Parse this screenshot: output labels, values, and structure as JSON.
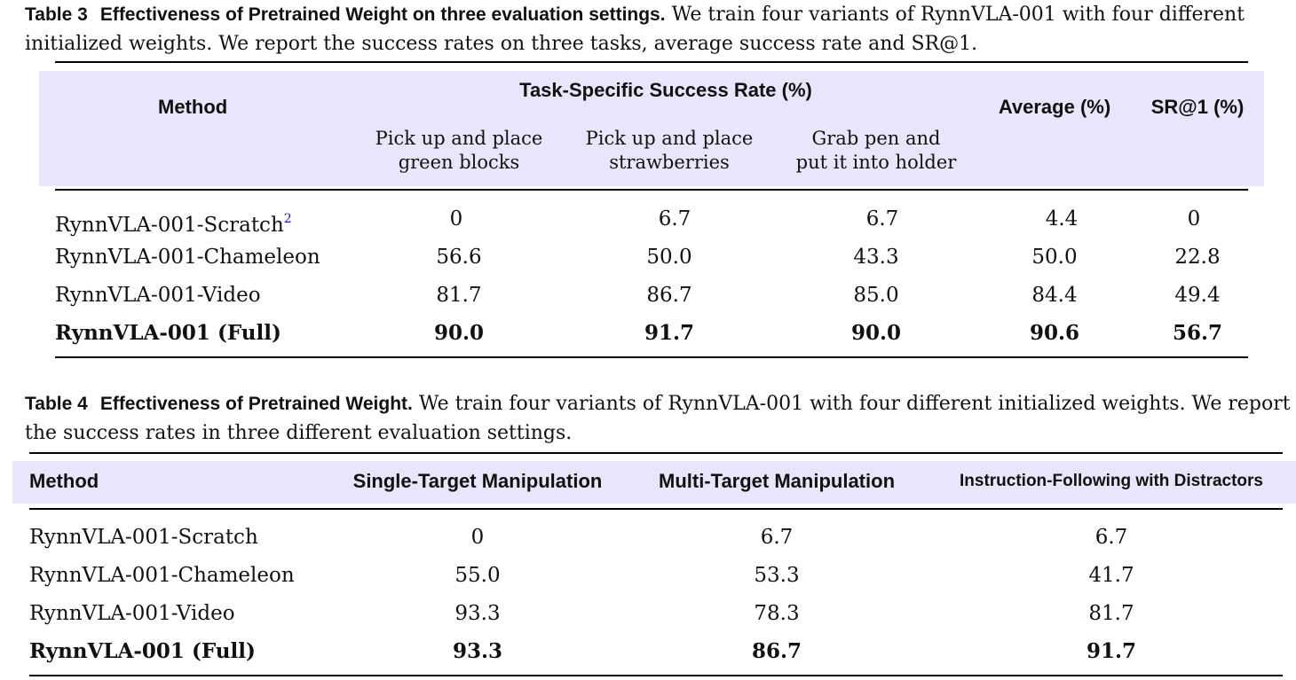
{
  "table3": {
    "caption_label": "Table 3",
    "caption_title": "Effectiveness of Pretrained Weight on three evaluation settings.",
    "caption_text": "We train four variants of RynnVLA-001 with four different initialized weights. We report the success rates on three tasks, average success rate and SR@1.",
    "headers": {
      "method": "Method",
      "group": "Task-Specific Success Rate (%)",
      "average": "Average (%)",
      "sr1": "SR@1 (%)",
      "tasks": [
        {
          "line1": "Pick up and place",
          "line2": "green blocks"
        },
        {
          "line1": "Pick up and place",
          "line2": "strawberries"
        },
        {
          "line1": "Grab pen and",
          "line2": "put it into holder"
        }
      ]
    },
    "rows": [
      {
        "method": "RynnVLA-001-Scratch",
        "footnote": "2",
        "values": [
          "0",
          "6.7",
          "6.7",
          "4.4",
          "0"
        ]
      },
      {
        "method": "RynnVLA-001-Chameleon",
        "footnote": "",
        "values": [
          "56.6",
          "50.0",
          "43.3",
          "50.0",
          "22.8"
        ]
      },
      {
        "method": "RynnVLA-001-Video",
        "footnote": "",
        "values": [
          "81.7",
          "86.7",
          "85.0",
          "84.4",
          "49.4"
        ]
      },
      {
        "method": "RynnVLA-001 (Full)",
        "footnote": "",
        "values": [
          "90.0",
          "91.7",
          "90.0",
          "90.6",
          "56.7"
        ]
      }
    ]
  },
  "table4": {
    "caption_label": "Table 4",
    "caption_title": "Effectiveness of Pretrained Weight.",
    "caption_text": "We train four variants of RynnVLA-001 with four different initialized weights. We report the success rates in three different evaluation settings.",
    "headers": {
      "method": "Method",
      "single": "Single-Target Manipulation",
      "multi": "Multi-Target Manipulation",
      "instr": "Instruction-Following with Distractors"
    },
    "rows": [
      {
        "method": "RynnVLA-001-Scratch",
        "values": [
          "0",
          "6.7",
          "6.7"
        ]
      },
      {
        "method": "RynnVLA-001-Chameleon",
        "values": [
          "55.0",
          "53.3",
          "41.7"
        ]
      },
      {
        "method": "RynnVLA-001-Video",
        "values": [
          "93.3",
          "78.3",
          "81.7"
        ]
      },
      {
        "method": "RynnVLA-001 (Full)",
        "values": [
          "93.3",
          "86.7",
          "91.7"
        ]
      }
    ]
  }
}
